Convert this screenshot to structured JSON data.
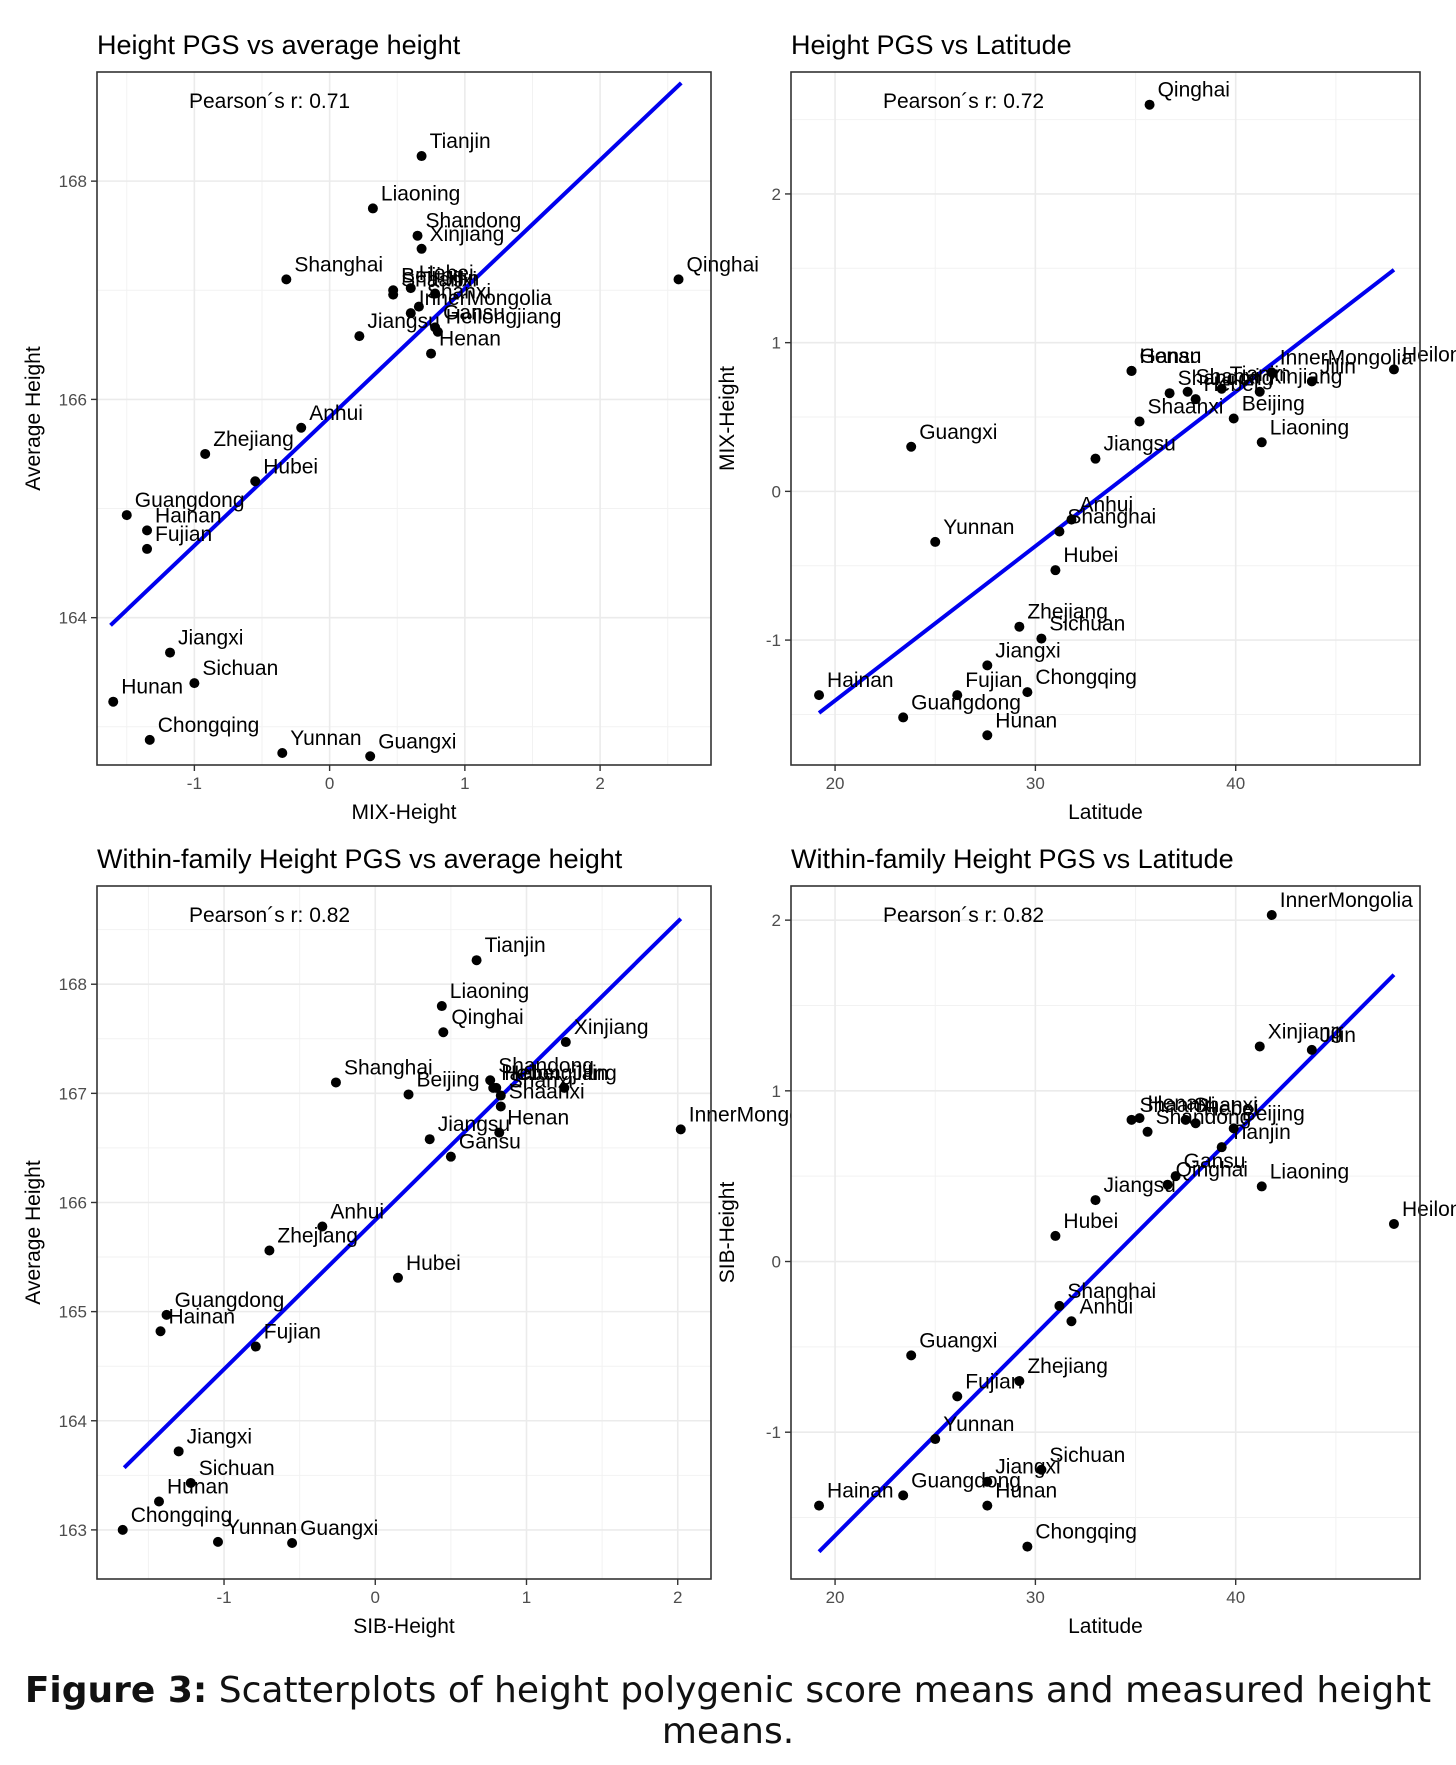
{
  "caption": {
    "label": "Figure 3:",
    "text": "Scatterplots of height polygenic score means and measured height means."
  },
  "colors": {
    "line": "#0000ee",
    "point": "#000000",
    "grid": "#ebebeb",
    "frame": "#333333",
    "axis_text": "#4d4d4d"
  },
  "chart_data": [
    {
      "type": "scatter",
      "title": "Height PGS vs average height",
      "xlabel": "MIX-Height",
      "ylabel": "Average Height",
      "annotation": "Pearson´s r:  0.71",
      "xlim": [
        -1.72,
        2.82
      ],
      "ylim": [
        162.65,
        169.0
      ],
      "xticks": [
        -1,
        0,
        1,
        2
      ],
      "yticks": [
        164,
        166,
        168
      ],
      "fit_line": [
        [
          -1.62,
          163.93
        ],
        [
          2.6,
          168.9
        ]
      ],
      "points": [
        {
          "name": "Tianjin",
          "x": 0.68,
          "y": 168.23
        },
        {
          "name": "Liaoning",
          "x": 0.32,
          "y": 167.75
        },
        {
          "name": "Shandong",
          "x": 0.65,
          "y": 167.5
        },
        {
          "name": "Xinjiang",
          "x": 0.68,
          "y": 167.38
        },
        {
          "name": "Qinghai",
          "x": 2.58,
          "y": 167.1
        },
        {
          "name": "Beijing",
          "x": 0.47,
          "y": 167.0
        },
        {
          "name": "Hebei",
          "x": 0.6,
          "y": 167.02
        },
        {
          "name": "Shanghai",
          "x": -0.32,
          "y": 167.1
        },
        {
          "name": "Shaanxi",
          "x": 0.47,
          "y": 166.96
        },
        {
          "name": "Jilin",
          "x": 0.78,
          "y": 166.97
        },
        {
          "name": "Shanxi",
          "x": 0.66,
          "y": 166.85
        },
        {
          "name": "InnerMongolia",
          "x": 0.6,
          "y": 166.79
        },
        {
          "name": "Heilongjiang",
          "x": 0.8,
          "y": 166.62
        },
        {
          "name": "Jiangsu",
          "x": 0.22,
          "y": 166.58
        },
        {
          "name": "Henan",
          "x": 0.75,
          "y": 166.42
        },
        {
          "name": "Gansu",
          "x": 0.78,
          "y": 166.66
        },
        {
          "name": "Anhui",
          "x": -0.21,
          "y": 165.74
        },
        {
          "name": "Zhejiang",
          "x": -0.92,
          "y": 165.5
        },
        {
          "name": "Hubei",
          "x": -0.55,
          "y": 165.25
        },
        {
          "name": "Guangdong",
          "x": -1.5,
          "y": 164.94
        },
        {
          "name": "Hainan",
          "x": -1.35,
          "y": 164.8
        },
        {
          "name": "Fujian",
          "x": -1.35,
          "y": 164.63
        },
        {
          "name": "Jiangxi",
          "x": -1.18,
          "y": 163.68
        },
        {
          "name": "Sichuan",
          "x": -1.0,
          "y": 163.4
        },
        {
          "name": "Hunan",
          "x": -1.6,
          "y": 163.23
        },
        {
          "name": "Chongqing",
          "x": -1.33,
          "y": 162.88
        },
        {
          "name": "Yunnan",
          "x": -0.35,
          "y": 162.76
        },
        {
          "name": "Guangxi",
          "x": 0.3,
          "y": 162.73
        }
      ]
    },
    {
      "type": "scatter",
      "title": "Height PGS vs Latitude",
      "xlabel": "Latitude",
      "ylabel": "MIX-Height",
      "annotation": "Pearson´s r:  0.72",
      "xlim": [
        17.8,
        49.2
      ],
      "ylim": [
        -1.84,
        2.82
      ],
      "xticks": [
        20,
        30,
        40
      ],
      "yticks": [
        -1,
        0,
        1,
        2
      ],
      "fit_line": [
        [
          19.2,
          -1.49
        ],
        [
          47.9,
          1.49
        ]
      ],
      "points": [
        {
          "name": "Qinghai",
          "x": 35.7,
          "y": 2.6
        },
        {
          "name": "Gansu",
          "x": 34.8,
          "y": 0.81
        },
        {
          "name": "Henan",
          "x": 34.8,
          "y": 0.81
        },
        {
          "name": "Tianjin",
          "x": 39.3,
          "y": 0.69
        },
        {
          "name": "Heilongjiang",
          "x": 47.9,
          "y": 0.82
        },
        {
          "name": "Shanxi",
          "x": 37.6,
          "y": 0.67
        },
        {
          "name": "InnerMongolia",
          "x": 41.8,
          "y": 0.8
        },
        {
          "name": "Jilin",
          "x": 43.8,
          "y": 0.74
        },
        {
          "name": "Shandong",
          "x": 36.7,
          "y": 0.66
        },
        {
          "name": "Xinjiang",
          "x": 41.2,
          "y": 0.67
        },
        {
          "name": "Guangxi",
          "x": 23.8,
          "y": 0.3
        },
        {
          "name": "Shaanxi",
          "x": 35.2,
          "y": 0.47
        },
        {
          "name": "Hebei",
          "x": 38.0,
          "y": 0.62
        },
        {
          "name": "Liaoning",
          "x": 41.3,
          "y": 0.33
        },
        {
          "name": "Beijing",
          "x": 39.9,
          "y": 0.49
        },
        {
          "name": "Jiangsu",
          "x": 33.0,
          "y": 0.22
        },
        {
          "name": "Anhui",
          "x": 31.8,
          "y": -0.19
        },
        {
          "name": "Yunnan",
          "x": 25.0,
          "y": -0.34
        },
        {
          "name": "Shanghai",
          "x": 31.2,
          "y": -0.27
        },
        {
          "name": "Hubei",
          "x": 31.0,
          "y": -0.53
        },
        {
          "name": "Zhejiang",
          "x": 29.2,
          "y": -0.91
        },
        {
          "name": "Jiangxi",
          "x": 27.6,
          "y": -1.17
        },
        {
          "name": "Sichuan",
          "x": 30.3,
          "y": -0.99
        },
        {
          "name": "Hainan",
          "x": 19.2,
          "y": -1.37
        },
        {
          "name": "Fujian",
          "x": 26.1,
          "y": -1.37
        },
        {
          "name": "Chongqing",
          "x": 29.6,
          "y": -1.35
        },
        {
          "name": "Guangdong",
          "x": 23.4,
          "y": -1.52
        },
        {
          "name": "Hunan",
          "x": 27.6,
          "y": -1.64
        }
      ]
    },
    {
      "type": "scatter",
      "title": "Within-family Height PGS vs average height",
      "xlabel": "SIB-Height",
      "ylabel": "Average Height",
      "annotation": "Pearson´s r:  0.82",
      "xlim": [
        -1.84,
        2.22
      ],
      "ylim": [
        162.55,
        168.9
      ],
      "xticks": [
        -1,
        0,
        1,
        2
      ],
      "yticks": [
        163,
        164,
        165,
        166,
        167,
        168
      ],
      "fit_line": [
        [
          -1.66,
          163.57
        ],
        [
          2.02,
          168.6
        ]
      ],
      "points": [
        {
          "name": "Tianjin",
          "x": 0.67,
          "y": 168.22
        },
        {
          "name": "Liaoning",
          "x": 0.44,
          "y": 167.8
        },
        {
          "name": "Qinghai",
          "x": 0.45,
          "y": 167.56
        },
        {
          "name": "Xinjiang",
          "x": 1.26,
          "y": 167.47
        },
        {
          "name": "Shandong",
          "x": 0.76,
          "y": 167.12
        },
        {
          "name": "Hebei",
          "x": 0.8,
          "y": 167.05
        },
        {
          "name": "Shanghai",
          "x": -0.26,
          "y": 167.1
        },
        {
          "name": "Beijing",
          "x": 0.22,
          "y": 166.99
        },
        {
          "name": "Jilin",
          "x": 1.25,
          "y": 167.05
        },
        {
          "name": "Heilongjiang",
          "x": 0.78,
          "y": 167.05
        },
        {
          "name": "Shanxi",
          "x": 0.83,
          "y": 166.98
        },
        {
          "name": "Shaanxi",
          "x": 0.83,
          "y": 166.88
        },
        {
          "name": "InnerMongolia",
          "x": 2.02,
          "y": 166.67
        },
        {
          "name": "Jiangsu",
          "x": 0.36,
          "y": 166.58
        },
        {
          "name": "Henan",
          "x": 0.82,
          "y": 166.64
        },
        {
          "name": "Gansu",
          "x": 0.5,
          "y": 166.42
        },
        {
          "name": "Anhui",
          "x": -0.35,
          "y": 165.78
        },
        {
          "name": "Zhejiang",
          "x": -0.7,
          "y": 165.56
        },
        {
          "name": "Hubei",
          "x": 0.15,
          "y": 165.31
        },
        {
          "name": "Guangdong",
          "x": -1.38,
          "y": 164.97
        },
        {
          "name": "Hainan",
          "x": -1.42,
          "y": 164.82
        },
        {
          "name": "Fujian",
          "x": -0.79,
          "y": 164.68
        },
        {
          "name": "Jiangxi",
          "x": -1.3,
          "y": 163.72
        },
        {
          "name": "Sichuan",
          "x": -1.22,
          "y": 163.43
        },
        {
          "name": "Hunan",
          "x": -1.43,
          "y": 163.26
        },
        {
          "name": "Chongqing",
          "x": -1.67,
          "y": 163.0
        },
        {
          "name": "Yunnan",
          "x": -1.04,
          "y": 162.89
        },
        {
          "name": "Guangxi",
          "x": -0.55,
          "y": 162.88
        }
      ]
    },
    {
      "type": "scatter",
      "title": "Within-family Height PGS vs Latitude",
      "xlabel": "Latitude",
      "ylabel": "SIB-Height",
      "annotation": "Pearson´s r:  0.82",
      "xlim": [
        17.8,
        49.2
      ],
      "ylim": [
        -1.86,
        2.2
      ],
      "xticks": [
        20,
        30,
        40
      ],
      "yticks": [
        -1,
        0,
        1,
        2
      ],
      "fit_line": [
        [
          19.2,
          -1.7
        ],
        [
          47.9,
          1.68
        ]
      ],
      "points": [
        {
          "name": "InnerMongolia",
          "x": 41.8,
          "y": 2.03
        },
        {
          "name": "Xinjiang",
          "x": 41.2,
          "y": 1.26
        },
        {
          "name": "Jilin",
          "x": 43.8,
          "y": 1.24
        },
        {
          "name": "Shaanxi",
          "x": 34.8,
          "y": 0.83
        },
        {
          "name": "Shanxi",
          "x": 37.5,
          "y": 0.83
        },
        {
          "name": "Beijing",
          "x": 39.9,
          "y": 0.78
        },
        {
          "name": "Henan",
          "x": 35.2,
          "y": 0.84
        },
        {
          "name": "Hebei",
          "x": 38.0,
          "y": 0.81
        },
        {
          "name": "Tianjin",
          "x": 39.3,
          "y": 0.67
        },
        {
          "name": "Qinghai",
          "x": 36.6,
          "y": 0.45
        },
        {
          "name": "Gansu",
          "x": 37.0,
          "y": 0.5
        },
        {
          "name": "Liaoning",
          "x": 41.3,
          "y": 0.44
        },
        {
          "name": "Heilongjiang",
          "x": 47.9,
          "y": 0.22
        },
        {
          "name": "Jiangsu",
          "x": 33.0,
          "y": 0.36
        },
        {
          "name": "Shandong",
          "x": 35.6,
          "y": 0.76
        },
        {
          "name": "Hubei",
          "x": 31.0,
          "y": 0.15
        },
        {
          "name": "Shanghai",
          "x": 31.2,
          "y": -0.26
        },
        {
          "name": "Anhui",
          "x": 31.8,
          "y": -0.35
        },
        {
          "name": "Guangxi",
          "x": 23.8,
          "y": -0.55
        },
        {
          "name": "Zhejiang",
          "x": 29.2,
          "y": -0.7
        },
        {
          "name": "Fujian",
          "x": 26.1,
          "y": -0.79
        },
        {
          "name": "Yunnan",
          "x": 25.0,
          "y": -1.04
        },
        {
          "name": "Jiangxi",
          "x": 27.6,
          "y": -1.29
        },
        {
          "name": "Sichuan",
          "x": 30.3,
          "y": -1.22
        },
        {
          "name": "Guangdong",
          "x": 23.4,
          "y": -1.37
        },
        {
          "name": "Hainan",
          "x": 19.2,
          "y": -1.43
        },
        {
          "name": "Hunan",
          "x": 27.6,
          "y": -1.43
        },
        {
          "name": "Chongqing",
          "x": 29.6,
          "y": -1.67
        }
      ]
    }
  ]
}
